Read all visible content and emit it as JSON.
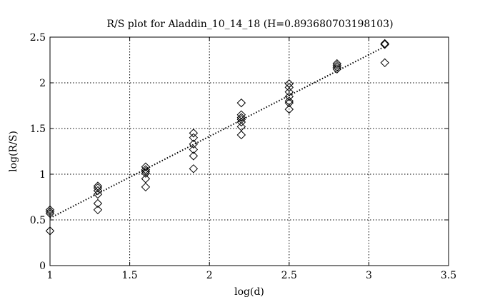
{
  "chart_data": {
    "type": "scatter",
    "title": "R/S plot for Aladdin_10_14_18 (H=0.893680703198103)",
    "xlabel": "log(d)",
    "ylabel": "log(R/S)",
    "xlim": [
      1,
      3.5
    ],
    "ylim": [
      0,
      2.5
    ],
    "xticks": [
      "1",
      "1.5",
      "2",
      "2.5",
      "3",
      "3.5"
    ],
    "yticks": [
      "0",
      "0.5",
      "1",
      "1.5",
      "2",
      "2.5"
    ],
    "grid": true,
    "marker": "diamond",
    "points": [
      [
        1.0,
        0.61
      ],
      [
        1.0,
        0.59
      ],
      [
        1.0,
        0.57
      ],
      [
        1.0,
        0.38
      ],
      [
        1.3,
        0.87
      ],
      [
        1.3,
        0.85
      ],
      [
        1.3,
        0.82
      ],
      [
        1.3,
        0.78
      ],
      [
        1.3,
        0.68
      ],
      [
        1.3,
        0.61
      ],
      [
        1.6,
        1.08
      ],
      [
        1.6,
        1.05
      ],
      [
        1.6,
        1.03
      ],
      [
        1.6,
        1.01
      ],
      [
        1.6,
        0.95
      ],
      [
        1.6,
        0.86
      ],
      [
        1.9,
        1.45
      ],
      [
        1.9,
        1.4
      ],
      [
        1.9,
        1.33
      ],
      [
        1.9,
        1.27
      ],
      [
        1.9,
        1.2
      ],
      [
        1.9,
        1.06
      ],
      [
        2.2,
        1.78
      ],
      [
        2.2,
        1.65
      ],
      [
        2.2,
        1.62
      ],
      [
        2.2,
        1.6
      ],
      [
        2.2,
        1.57
      ],
      [
        2.2,
        1.52
      ],
      [
        2.2,
        1.43
      ],
      [
        2.5,
        1.99
      ],
      [
        2.5,
        1.95
      ],
      [
        2.5,
        1.9
      ],
      [
        2.5,
        1.85
      ],
      [
        2.5,
        1.8
      ],
      [
        2.5,
        1.78
      ],
      [
        2.5,
        1.71
      ],
      [
        2.8,
        2.21
      ],
      [
        2.8,
        2.19
      ],
      [
        2.8,
        2.17
      ],
      [
        2.8,
        2.15
      ],
      [
        3.1,
        2.43
      ],
      [
        3.1,
        2.42
      ],
      [
        3.1,
        2.22
      ]
    ],
    "fit_line": {
      "style": "dotted",
      "slope": 0.89368,
      "points": [
        [
          1.0,
          0.52
        ],
        [
          3.1,
          2.397
        ]
      ]
    }
  }
}
